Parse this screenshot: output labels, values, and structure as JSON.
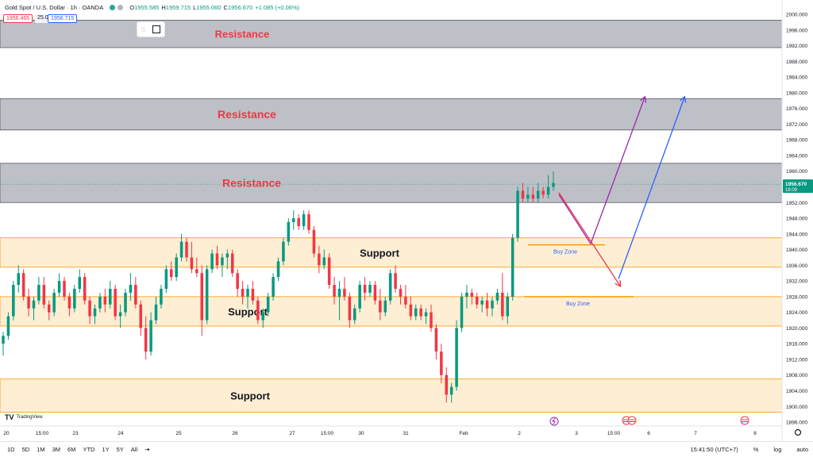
{
  "header": {
    "symbol": "Gold Spot / U.S. Dollar · 1h · OANDA",
    "open_label": "O",
    "open": "1955.585",
    "high_label": "H",
    "high": "1959.715",
    "low_label": "L",
    "low": "1955.060",
    "close_label": "C",
    "close": "1956.670",
    "change": "+1.085 (+0.06%)",
    "bid": "1956.465",
    "spread": "25.0",
    "ask": "1956.715"
  },
  "price_label": {
    "value": "1956.670",
    "countdown": "18:09"
  },
  "bottom": {
    "ranges": [
      "1D",
      "5D",
      "1M",
      "3M",
      "6M",
      "YTD",
      "1Y",
      "5Y",
      "All"
    ],
    "time": "15:41:50 (UTC+7)",
    "pct": "%",
    "log": "log",
    "auto": "auto"
  },
  "branding": "TradingView",
  "colors": {
    "up": "#089981",
    "down": "#f23645",
    "resistance": "#b2b5bc",
    "support": "#fde8c4",
    "support_line": "#ff9800",
    "label_red": "#f23645",
    "purple": "#9c27b0",
    "blue": "#2962ff"
  },
  "chart_data": {
    "type": "candlestick",
    "title": "Gold Spot / U.S. Dollar · 1h · OANDA",
    "ylim": [
      1895,
      2000
    ],
    "y_ticks": [
      1896,
      1900,
      1904,
      1908,
      1912,
      1916,
      1920,
      1924,
      1928,
      1932,
      1936,
      1940,
      1944,
      1948,
      1952,
      1956,
      1960,
      1964,
      1968,
      1972,
      1976,
      1980,
      1984,
      1988,
      1992,
      1996,
      2000
    ],
    "x_ticks": [
      "20",
      "15:00",
      "23",
      "24",
      "25",
      "26",
      "27",
      "15:00",
      "30",
      "31",
      "Feb",
      "2",
      "3",
      "15:00",
      "6",
      "7",
      "8"
    ],
    "current_price": 1956.67,
    "zones": [
      {
        "type": "resistance",
        "label": "Resistance",
        "from": 1991.5,
        "to": 1998.5
      },
      {
        "type": "resistance",
        "label": "Resistance",
        "from": 1970.5,
        "to": 1978.5
      },
      {
        "type": "resistance",
        "label": "Resistance",
        "from": 1952,
        "to": 1962
      },
      {
        "type": "support",
        "label": "Support",
        "from": 1935.5,
        "to": 1943
      },
      {
        "type": "support",
        "label": "Support",
        "from": 1920.5,
        "to": 1928
      },
      {
        "type": "support",
        "label": "Support",
        "from": 1898.5,
        "to": 1907
      }
    ],
    "buy_zones": [
      {
        "label": "Buy Zone",
        "price": 1941.2
      },
      {
        "label": "Buy Zone",
        "price": 1928.0
      }
    ],
    "candles": [
      {
        "o": 1916,
        "h": 1919,
        "l": 1913,
        "c": 1918
      },
      {
        "o": 1918,
        "h": 1924,
        "l": 1917,
        "c": 1923
      },
      {
        "o": 1923,
        "h": 1932,
        "l": 1922,
        "c": 1931
      },
      {
        "o": 1931,
        "h": 1936,
        "l": 1929,
        "c": 1934
      },
      {
        "o": 1934,
        "h": 1935,
        "l": 1927,
        "c": 1928
      },
      {
        "o": 1928,
        "h": 1930,
        "l": 1923,
        "c": 1925
      },
      {
        "o": 1925,
        "h": 1928,
        "l": 1922,
        "c": 1927
      },
      {
        "o": 1927,
        "h": 1933,
        "l": 1926,
        "c": 1931
      },
      {
        "o": 1931,
        "h": 1933,
        "l": 1925,
        "c": 1926
      },
      {
        "o": 1926,
        "h": 1927,
        "l": 1922,
        "c": 1924
      },
      {
        "o": 1924,
        "h": 1930,
        "l": 1923,
        "c": 1929
      },
      {
        "o": 1929,
        "h": 1934,
        "l": 1928,
        "c": 1932
      },
      {
        "o": 1932,
        "h": 1933,
        "l": 1927,
        "c": 1928
      },
      {
        "o": 1928,
        "h": 1929,
        "l": 1923,
        "c": 1925
      },
      {
        "o": 1925,
        "h": 1931,
        "l": 1924,
        "c": 1930
      },
      {
        "o": 1930,
        "h": 1935,
        "l": 1929,
        "c": 1933
      },
      {
        "o": 1933,
        "h": 1934,
        "l": 1926,
        "c": 1927
      },
      {
        "o": 1927,
        "h": 1928,
        "l": 1921,
        "c": 1923
      },
      {
        "o": 1923,
        "h": 1926,
        "l": 1921,
        "c": 1925
      },
      {
        "o": 1925,
        "h": 1929,
        "l": 1924,
        "c": 1928
      },
      {
        "o": 1928,
        "h": 1930,
        "l": 1924,
        "c": 1926
      },
      {
        "o": 1926,
        "h": 1932,
        "l": 1925,
        "c": 1930
      },
      {
        "o": 1930,
        "h": 1931,
        "l": 1922,
        "c": 1923
      },
      {
        "o": 1923,
        "h": 1926,
        "l": 1920,
        "c": 1924
      },
      {
        "o": 1924,
        "h": 1930,
        "l": 1923,
        "c": 1929
      },
      {
        "o": 1929,
        "h": 1934,
        "l": 1927,
        "c": 1931
      },
      {
        "o": 1931,
        "h": 1933,
        "l": 1925,
        "c": 1926
      },
      {
        "o": 1926,
        "h": 1927,
        "l": 1918,
        "c": 1920
      },
      {
        "o": 1920,
        "h": 1923,
        "l": 1912,
        "c": 1914
      },
      {
        "o": 1914,
        "h": 1924,
        "l": 1913,
        "c": 1922
      },
      {
        "o": 1922,
        "h": 1928,
        "l": 1921,
        "c": 1926
      },
      {
        "o": 1926,
        "h": 1931,
        "l": 1925,
        "c": 1930
      },
      {
        "o": 1930,
        "h": 1936,
        "l": 1929,
        "c": 1935
      },
      {
        "o": 1935,
        "h": 1937,
        "l": 1932,
        "c": 1933
      },
      {
        "o": 1933,
        "h": 1939,
        "l": 1932,
        "c": 1938
      },
      {
        "o": 1938,
        "h": 1944,
        "l": 1937,
        "c": 1942
      },
      {
        "o": 1942,
        "h": 1943,
        "l": 1937,
        "c": 1938
      },
      {
        "o": 1938,
        "h": 1942,
        "l": 1934,
        "c": 1935
      },
      {
        "o": 1935,
        "h": 1938,
        "l": 1933,
        "c": 1934
      },
      {
        "o": 1934,
        "h": 1936,
        "l": 1918,
        "c": 1922
      },
      {
        "o": 1922,
        "h": 1936,
        "l": 1921,
        "c": 1935
      },
      {
        "o": 1935,
        "h": 1940,
        "l": 1934,
        "c": 1939
      },
      {
        "o": 1939,
        "h": 1941,
        "l": 1935,
        "c": 1936
      },
      {
        "o": 1936,
        "h": 1939,
        "l": 1933,
        "c": 1938
      },
      {
        "o": 1938,
        "h": 1940,
        "l": 1935,
        "c": 1939
      },
      {
        "o": 1939,
        "h": 1940,
        "l": 1933,
        "c": 1934
      },
      {
        "o": 1934,
        "h": 1935,
        "l": 1928,
        "c": 1930
      },
      {
        "o": 1930,
        "h": 1932,
        "l": 1926,
        "c": 1928
      },
      {
        "o": 1928,
        "h": 1931,
        "l": 1925,
        "c": 1930
      },
      {
        "o": 1930,
        "h": 1932,
        "l": 1926,
        "c": 1927
      },
      {
        "o": 1927,
        "h": 1928,
        "l": 1921,
        "c": 1922
      },
      {
        "o": 1922,
        "h": 1925,
        "l": 1920,
        "c": 1924
      },
      {
        "o": 1924,
        "h": 1929,
        "l": 1923,
        "c": 1928
      },
      {
        "o": 1928,
        "h": 1934,
        "l": 1927,
        "c": 1933
      },
      {
        "o": 1933,
        "h": 1938,
        "l": 1932,
        "c": 1937
      },
      {
        "o": 1937,
        "h": 1943,
        "l": 1936,
        "c": 1942
      },
      {
        "o": 1942,
        "h": 1948,
        "l": 1941,
        "c": 1947
      },
      {
        "o": 1947,
        "h": 1950,
        "l": 1945,
        "c": 1948
      },
      {
        "o": 1948,
        "h": 1949,
        "l": 1945,
        "c": 1946
      },
      {
        "o": 1946,
        "h": 1950,
        "l": 1945,
        "c": 1949
      },
      {
        "o": 1949,
        "h": 1950,
        "l": 1944,
        "c": 1945
      },
      {
        "o": 1945,
        "h": 1946,
        "l": 1938,
        "c": 1939
      },
      {
        "o": 1939,
        "h": 1941,
        "l": 1934,
        "c": 1936
      },
      {
        "o": 1936,
        "h": 1940,
        "l": 1935,
        "c": 1938
      },
      {
        "o": 1938,
        "h": 1939,
        "l": 1930,
        "c": 1931
      },
      {
        "o": 1931,
        "h": 1933,
        "l": 1926,
        "c": 1928
      },
      {
        "o": 1928,
        "h": 1932,
        "l": 1922,
        "c": 1930
      },
      {
        "o": 1930,
        "h": 1933,
        "l": 1927,
        "c": 1928
      },
      {
        "o": 1928,
        "h": 1929,
        "l": 1920,
        "c": 1922
      },
      {
        "o": 1922,
        "h": 1926,
        "l": 1921,
        "c": 1925
      },
      {
        "o": 1925,
        "h": 1932,
        "l": 1924,
        "c": 1931
      },
      {
        "o": 1931,
        "h": 1933,
        "l": 1927,
        "c": 1929
      },
      {
        "o": 1929,
        "h": 1932,
        "l": 1928,
        "c": 1931
      },
      {
        "o": 1931,
        "h": 1932,
        "l": 1926,
        "c": 1927
      },
      {
        "o": 1927,
        "h": 1930,
        "l": 1922,
        "c": 1924
      },
      {
        "o": 1924,
        "h": 1928,
        "l": 1923,
        "c": 1927
      },
      {
        "o": 1927,
        "h": 1935,
        "l": 1926,
        "c": 1934
      },
      {
        "o": 1934,
        "h": 1936,
        "l": 1929,
        "c": 1930
      },
      {
        "o": 1930,
        "h": 1931,
        "l": 1926,
        "c": 1928
      },
      {
        "o": 1928,
        "h": 1931,
        "l": 1925,
        "c": 1926
      },
      {
        "o": 1926,
        "h": 1928,
        "l": 1922,
        "c": 1923
      },
      {
        "o": 1923,
        "h": 1926,
        "l": 1922,
        "c": 1925
      },
      {
        "o": 1925,
        "h": 1926,
        "l": 1922,
        "c": 1923
      },
      {
        "o": 1923,
        "h": 1925,
        "l": 1921,
        "c": 1924
      },
      {
        "o": 1924,
        "h": 1926,
        "l": 1919,
        "c": 1920
      },
      {
        "o": 1920,
        "h": 1921,
        "l": 1912,
        "c": 1914
      },
      {
        "o": 1914,
        "h": 1916,
        "l": 1906,
        "c": 1908
      },
      {
        "o": 1908,
        "h": 1910,
        "l": 1901,
        "c": 1903
      },
      {
        "o": 1903,
        "h": 1906,
        "l": 1901,
        "c": 1905
      },
      {
        "o": 1905,
        "h": 1922,
        "l": 1904,
        "c": 1920
      },
      {
        "o": 1920,
        "h": 1929,
        "l": 1919,
        "c": 1928
      },
      {
        "o": 1928,
        "h": 1931,
        "l": 1925,
        "c": 1929
      },
      {
        "o": 1929,
        "h": 1930,
        "l": 1926,
        "c": 1928
      },
      {
        "o": 1928,
        "h": 1929,
        "l": 1925,
        "c": 1926
      },
      {
        "o": 1926,
        "h": 1928,
        "l": 1924,
        "c": 1927
      },
      {
        "o": 1927,
        "h": 1929,
        "l": 1923,
        "c": 1925
      },
      {
        "o": 1925,
        "h": 1928,
        "l": 1923,
        "c": 1927
      },
      {
        "o": 1927,
        "h": 1930,
        "l": 1926,
        "c": 1929
      },
      {
        "o": 1929,
        "h": 1934,
        "l": 1922,
        "c": 1923
      },
      {
        "o": 1923,
        "h": 1929,
        "l": 1921,
        "c": 1928
      },
      {
        "o": 1928,
        "h": 1944,
        "l": 1927,
        "c": 1943
      },
      {
        "o": 1943,
        "h": 1956,
        "l": 1942,
        "c": 1955
      },
      {
        "o": 1955,
        "h": 1957,
        "l": 1952,
        "c": 1953
      },
      {
        "o": 1953,
        "h": 1956,
        "l": 1952,
        "c": 1954
      },
      {
        "o": 1954,
        "h": 1956,
        "l": 1952,
        "c": 1953
      },
      {
        "o": 1953,
        "h": 1957,
        "l": 1952,
        "c": 1955
      },
      {
        "o": 1955,
        "h": 1956,
        "l": 1953,
        "c": 1954
      },
      {
        "o": 1954,
        "h": 1959,
        "l": 1953,
        "c": 1956
      },
      {
        "o": 1956,
        "h": 1960,
        "l": 1955,
        "c": 1957
      }
    ],
    "projections": [
      {
        "color": "purple",
        "points": [
          [
            1954,
            "now"
          ],
          [
            1941.5,
            "t1"
          ],
          [
            1978.5,
            "t2"
          ]
        ]
      },
      {
        "color": "blue",
        "points": [
          [
            1931,
            "t3"
          ],
          [
            1978.5,
            "t4"
          ]
        ]
      },
      {
        "color": "red",
        "points": [
          [
            1955,
            "now"
          ],
          [
            1931,
            "t3"
          ]
        ]
      }
    ]
  }
}
